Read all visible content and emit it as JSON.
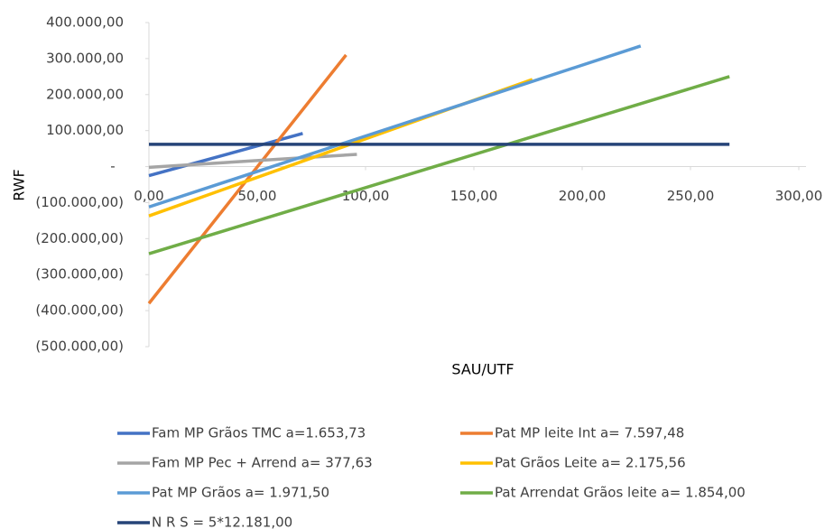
{
  "chart_data": {
    "type": "line",
    "x_label": "SAU/UTF",
    "y_label": "RWF",
    "xlim": [
      0,
      300
    ],
    "xticks": [
      {
        "value": 0,
        "label": "0,00"
      },
      {
        "value": 50,
        "label": "50,00"
      },
      {
        "value": 100,
        "label": "100,00"
      },
      {
        "value": 150,
        "label": "150,00"
      },
      {
        "value": 200,
        "label": "200,00"
      },
      {
        "value": 250,
        "label": "250,00"
      },
      {
        "value": 300,
        "label": "300,00"
      }
    ],
    "ylim": [
      -500000,
      400000
    ],
    "yticks": [
      {
        "value": 400000,
        "label": "400.000,00"
      },
      {
        "value": 300000,
        "label": "300.000,00"
      },
      {
        "value": 200000,
        "label": "200.000,00"
      },
      {
        "value": 100000,
        "label": "100.000,00"
      },
      {
        "value": 0,
        "label": "-"
      },
      {
        "value": -100000,
        "label": "(100.000,00)"
      },
      {
        "value": -200000,
        "label": "(200.000,00)"
      },
      {
        "value": -300000,
        "label": "(300.000,00)"
      },
      {
        "value": -400000,
        "label": "(400.000,00)"
      },
      {
        "value": -500000,
        "label": "(500.000,00)"
      }
    ],
    "series": [
      {
        "name": "Fam MP Grãos TMC a=1.653,73",
        "color": "#4472c4",
        "x": [
          0,
          71
        ],
        "values": [
          -25000,
          92000
        ]
      },
      {
        "name": "Pat MP leite Int a= 7.597,48",
        "color": "#ed7d31",
        "x": [
          0,
          91
        ],
        "values": [
          -380000,
          310000
        ]
      },
      {
        "name": "Fam MP Pec + Arrend a= 377,63",
        "color": "#a5a5a5",
        "x": [
          0,
          96
        ],
        "values": [
          -2000,
          34000
        ]
      },
      {
        "name": "Pat Grãos Leite a= 2.175,56",
        "color": "#ffc000",
        "x": [
          0,
          177
        ],
        "values": [
          -137000,
          242000
        ]
      },
      {
        "name": "Pat MP Grãos a= 1.971,50",
        "color": "#5b9bd5",
        "x": [
          0,
          227
        ],
        "values": [
          -112000,
          335000
        ]
      },
      {
        "name": "Pat Arrendat Grãos leite a= 1.854,00",
        "color": "#70ad47",
        "x": [
          0,
          268
        ],
        "values": [
          -242000,
          250000
        ]
      },
      {
        "name": "N R S = 5*12.181,00",
        "color": "#264478",
        "x": [
          0,
          268
        ],
        "values": [
          62000,
          62000
        ]
      }
    ]
  }
}
